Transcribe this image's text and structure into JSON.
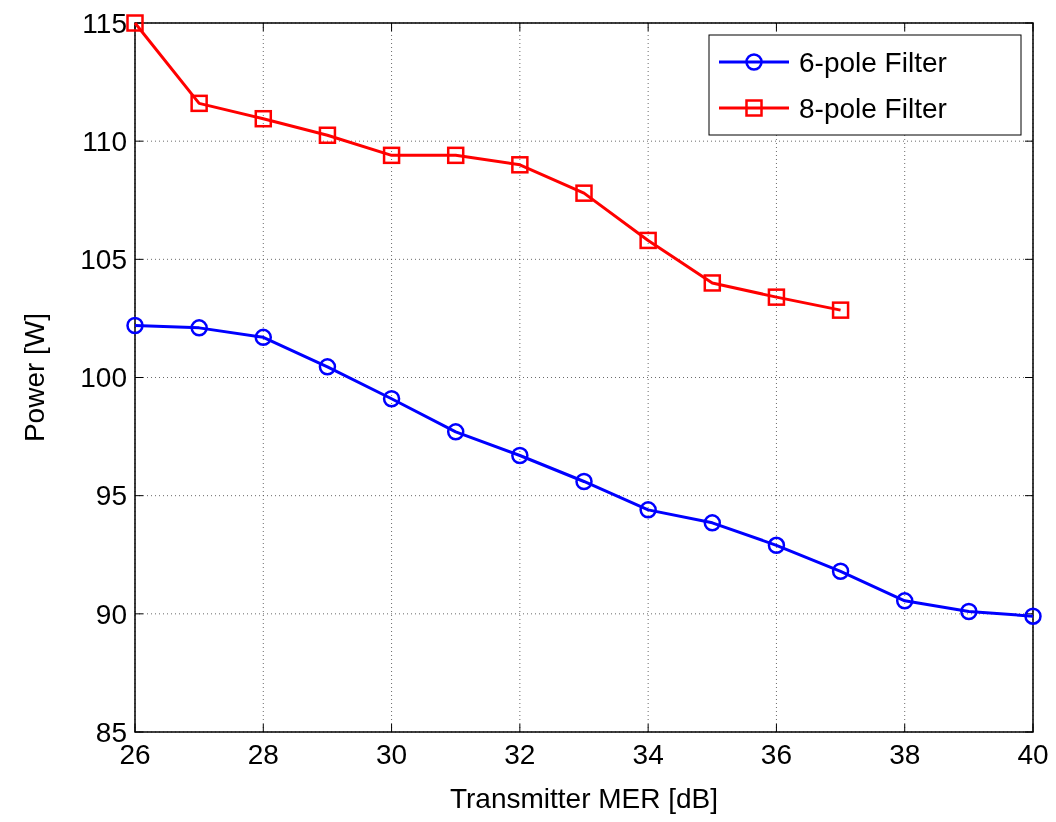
{
  "chart_data": {
    "type": "line",
    "xlabel": "Transmitter MER [dB]",
    "ylabel": "Power [W]",
    "x": [
      26,
      27,
      28,
      29,
      30,
      31,
      32,
      33,
      34,
      35,
      36,
      37,
      38,
      39,
      40
    ],
    "series": [
      {
        "name": "6-pole Filter",
        "color": "#0000ff",
        "marker": "circle",
        "values": [
          102.2,
          102.1,
          101.7,
          100.45,
          99.1,
          97.7,
          96.7,
          95.6,
          94.4,
          93.85,
          92.9,
          91.8,
          90.55,
          90.1,
          89.9
        ]
      },
      {
        "name": "8-pole Filter",
        "color": "#ff0000",
        "marker": "square",
        "values": [
          115,
          111.6,
          110.95,
          110.25,
          109.4,
          109.4,
          109,
          107.8,
          105.8,
          104,
          103.4,
          102.85,
          null,
          null,
          null
        ]
      }
    ],
    "xlim": [
      26,
      40
    ],
    "xticks": [
      26,
      28,
      30,
      32,
      34,
      36,
      38,
      40
    ],
    "ylim": [
      85,
      115
    ],
    "yticks": [
      85,
      90,
      95,
      100,
      105,
      110,
      115
    ],
    "grid": true,
    "legend": "top right",
    "line_style": "solid"
  }
}
